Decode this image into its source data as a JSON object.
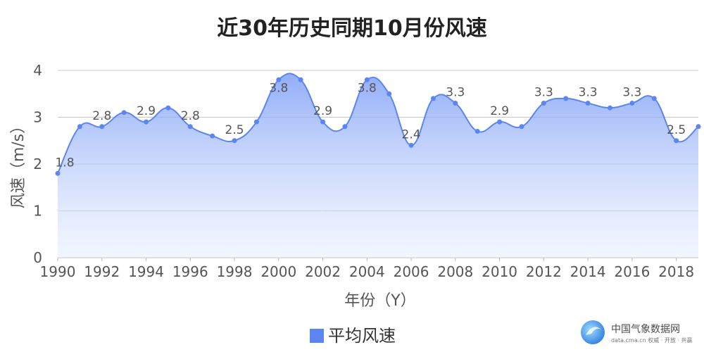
{
  "chart_data": {
    "type": "area",
    "title": "近30年历史同期10月份风速",
    "xlabel": "年份（Y）",
    "ylabel": "风速（m/s）",
    "ylim": [
      0,
      4
    ],
    "xlim": [
      1990,
      2019
    ],
    "yticks": [
      "0",
      "1",
      "2",
      "3",
      "4"
    ],
    "xticks": [
      "1990",
      "1992",
      "1994",
      "1996",
      "1998",
      "2000",
      "2002",
      "2004",
      "2006",
      "2008",
      "2010",
      "2012",
      "2014",
      "2016",
      "2018"
    ],
    "grid": true,
    "legend_position": "bottom",
    "x": [
      1990,
      1991,
      1992,
      1993,
      1994,
      1995,
      1996,
      1997,
      1998,
      1999,
      2000,
      2001,
      2002,
      2003,
      2004,
      2005,
      2006,
      2007,
      2008,
      2009,
      2010,
      2011,
      2012,
      2013,
      2014,
      2015,
      2016,
      2017,
      2018,
      2019
    ],
    "series": [
      {
        "name": "平均风速",
        "color": "#5b86f2",
        "values": [
          1.8,
          2.8,
          2.8,
          3.1,
          2.9,
          3.2,
          2.8,
          2.6,
          2.5,
          2.9,
          3.8,
          3.8,
          2.9,
          2.8,
          3.8,
          3.5,
          2.4,
          3.4,
          3.3,
          2.7,
          2.9,
          2.8,
          3.3,
          3.4,
          3.3,
          3.2,
          3.3,
          3.4,
          2.5,
          2.8
        ]
      }
    ],
    "data_labels": [
      {
        "x": 1990,
        "text": "1.8"
      },
      {
        "x": 1992,
        "text": "2.8"
      },
      {
        "x": 1994,
        "text": "2.9"
      },
      {
        "x": 1996,
        "text": "2.8"
      },
      {
        "x": 1998,
        "text": "2.5"
      },
      {
        "x": 2000,
        "text": "3.8"
      },
      {
        "x": 2002,
        "text": "2.9"
      },
      {
        "x": 2004,
        "text": "3.8"
      },
      {
        "x": 2006,
        "text": "2.4"
      },
      {
        "x": 2008,
        "text": "3.3"
      },
      {
        "x": 2010,
        "text": "2.9"
      },
      {
        "x": 2012,
        "text": "3.3"
      },
      {
        "x": 2014,
        "text": "3.3"
      },
      {
        "x": 2016,
        "text": "3.3"
      },
      {
        "x": 2018,
        "text": "2.5"
      }
    ]
  },
  "watermark": {
    "name": "中国气象数据网",
    "url_line": "data.cma.cn 权威 · 开放 · 共赢"
  }
}
